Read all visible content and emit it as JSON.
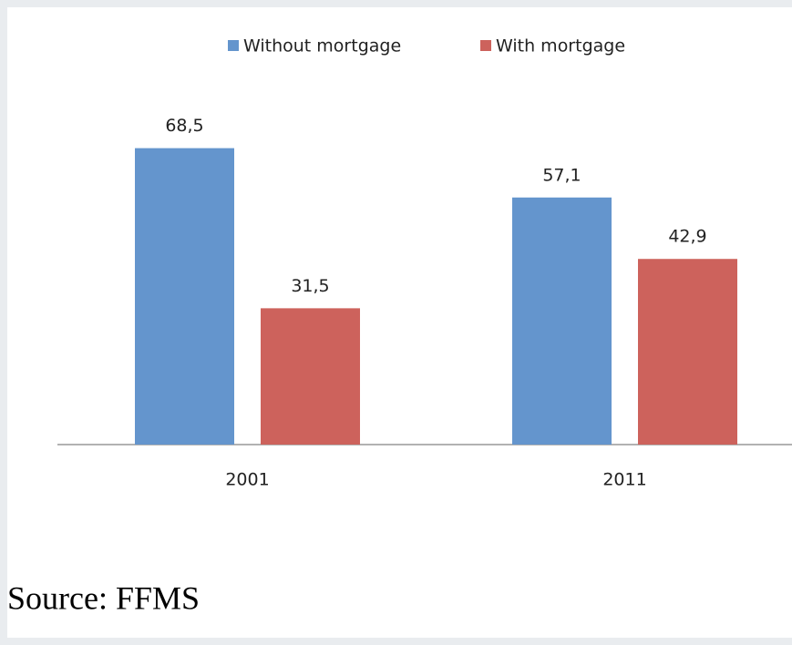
{
  "chart_data": {
    "type": "bar",
    "categories": [
      "2001",
      "2011"
    ],
    "series": [
      {
        "name": "Without mortgage",
        "color": "#6495cd",
        "values": [
          68.5,
          57.1
        ],
        "value_labels": [
          "68,5",
          "57,1"
        ]
      },
      {
        "name": "With mortgage",
        "color": "#cd625c",
        "values": [
          31.5,
          42.9
        ],
        "value_labels": [
          "31,5",
          "42,9"
        ]
      }
    ],
    "ylim": [
      0,
      80
    ],
    "legend": "top"
  },
  "caption": "Source: FFMS"
}
